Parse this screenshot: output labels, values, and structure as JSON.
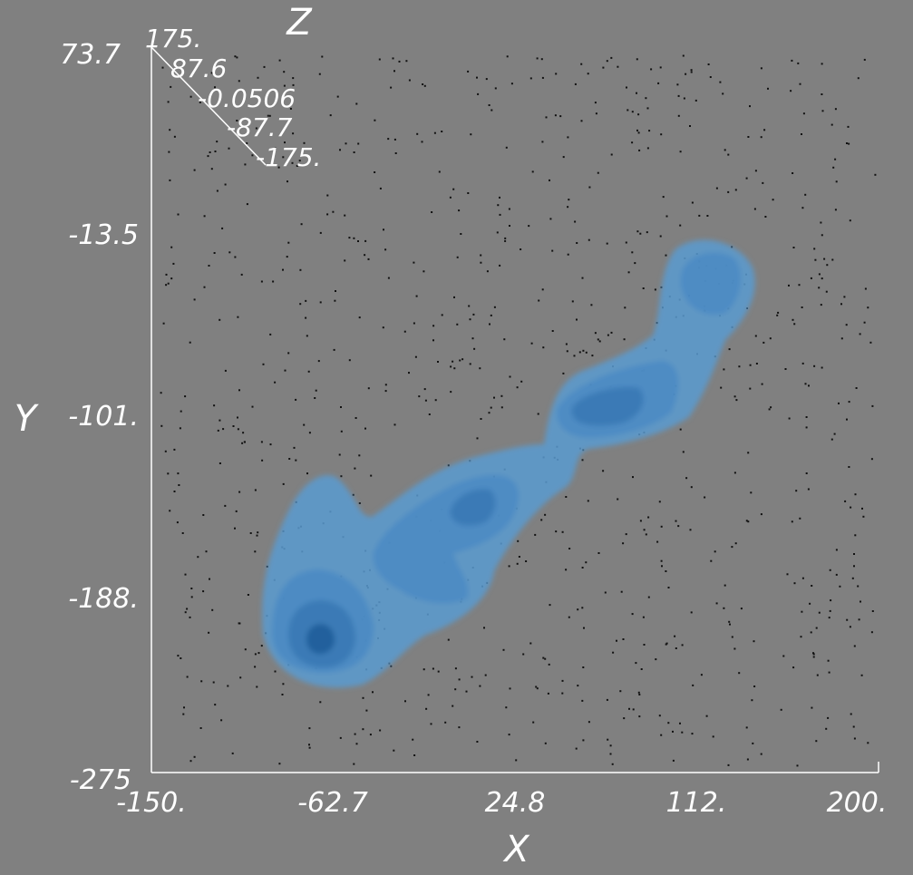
{
  "chart_data": {
    "type": "isosurface-3d",
    "xlabel": "X",
    "ylabel": "Y",
    "zlabel": "Z",
    "xlim": [
      -150,
      200
    ],
    "ylim": [
      -275,
      73.7
    ],
    "zlim": [
      -175,
      175
    ],
    "x_ticks": [
      "-150.",
      "-62.7",
      "24.8",
      "112.",
      "200."
    ],
    "y_ticks": [
      "-275",
      "-188.",
      "-101.",
      "-13.5",
      "73.7"
    ],
    "z_ticks": [
      "175.",
      "87.6",
      "-0.0506",
      "-87.7",
      "-175."
    ],
    "x_tick_values": [
      -150,
      -62.7,
      24.8,
      112,
      200
    ],
    "y_tick_values": [
      -275,
      -188,
      -101,
      -13.5,
      73.7
    ],
    "grid": false,
    "surface_color": "#5b9bd0",
    "core_color": "#1f5f9c",
    "background": "#808080",
    "density_peaks": [
      {
        "x": -64,
        "y": -210,
        "z": 0
      },
      {
        "x": 2,
        "y": -145,
        "z": 0
      },
      {
        "x": 75,
        "y": -98,
        "z": 0
      },
      {
        "x": 138,
        "y": -35,
        "z": 0
      }
    ]
  }
}
